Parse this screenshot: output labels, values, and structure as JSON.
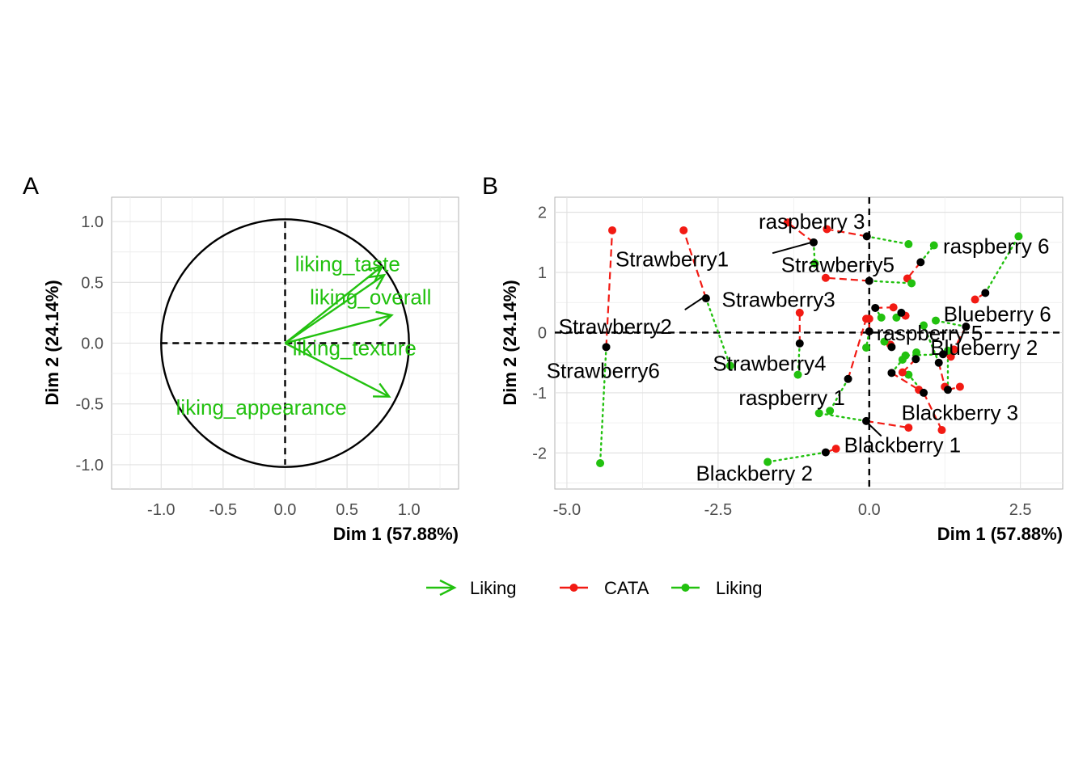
{
  "colors": {
    "cata": "#F21A13",
    "liking": "#22C10F",
    "product": "#000000",
    "grid": "#e0e0e0"
  },
  "legend": [
    {
      "kind": "arrow",
      "label": "Liking",
      "color": "#22C10F"
    },
    {
      "kind": "line-point",
      "label": "CATA",
      "color": "#F21A13"
    },
    {
      "kind": "line-point",
      "label": "Liking",
      "color": "#22C10F"
    }
  ],
  "chart_data": [
    {
      "panel": "A",
      "type": "correlation-circle",
      "xlabel": "Dim 1 (57.88%)",
      "ylabel": "Dim 2 (24.14%)",
      "xlim": [
        -1.4,
        1.4
      ],
      "ylim": [
        -1.2,
        1.2
      ],
      "xticks": [
        -1.0,
        -0.5,
        0.0,
        0.5,
        1.0
      ],
      "xtick_labels": [
        "-1.0",
        "-0.5",
        "0.0",
        "0.5",
        "1.0"
      ],
      "yticks": [
        -1.0,
        -0.5,
        0.0,
        0.5,
        1.0
      ],
      "ytick_labels": [
        "-1.0",
        "-0.5",
        "0.0",
        "0.5",
        "1.0"
      ],
      "vectors": [
        {
          "name": "liking_taste",
          "x": 0.78,
          "y": 0.63
        },
        {
          "name": "liking_overall",
          "x": 0.8,
          "y": 0.56
        },
        {
          "name": "liking_texture",
          "x": 0.86,
          "y": 0.23
        },
        {
          "name": "liking_appearance",
          "x": 0.84,
          "y": -0.44
        }
      ]
    },
    {
      "panel": "B",
      "type": "scatter",
      "xlabel": "Dim 1 (57.88%)",
      "ylabel": "Dim 2 (24.14%)",
      "xlim": [
        -5.2,
        3.2
      ],
      "ylim": [
        -2.6,
        2.25
      ],
      "xticks": [
        -5.0,
        -2.5,
        0.0,
        2.5
      ],
      "xtick_labels": [
        "-5.0",
        "-2.5",
        "0.0",
        "2.5"
      ],
      "yticks": [
        -2,
        -1,
        0,
        1,
        2
      ],
      "ytick_labels": [
        "-2",
        "-1",
        "0",
        "1",
        "2"
      ],
      "products": [
        {
          "x": -0.92,
          "y": 1.5,
          "cata": [
            -1.35,
            1.83
          ],
          "liking": [
            -0.9,
            1.15
          ]
        },
        {
          "x": -0.04,
          "y": 1.6,
          "cata": [
            -0.7,
            1.72
          ],
          "liking": [
            0.65,
            1.47
          ]
        },
        {
          "x": 0.85,
          "y": 1.17,
          "cata": [
            0.63,
            0.9
          ],
          "liking": [
            1.07,
            1.45
          ]
        },
        {
          "x": 0.0,
          "y": 0.86,
          "cata": [
            -0.72,
            0.91
          ],
          "liking": [
            0.7,
            0.82
          ]
        },
        {
          "x": -2.7,
          "y": 0.57,
          "cata": [
            -3.07,
            1.7
          ],
          "liking": [
            -2.3,
            -0.55
          ]
        },
        {
          "x": -4.35,
          "y": -0.24,
          "cata": [
            -4.25,
            1.7
          ],
          "liking": [
            -4.45,
            -2.17
          ]
        },
        {
          "x": -1.15,
          "y": -0.18,
          "cata": [
            -1.15,
            0.33
          ],
          "liking": [
            -1.18,
            -0.7
          ]
        },
        {
          "x": -0.35,
          "y": -0.77,
          "cata": [
            -0.05,
            0.23
          ],
          "liking": [
            -0.65,
            -1.3
          ]
        },
        {
          "x": -0.05,
          "y": -1.47,
          "cata": [
            0.65,
            -1.58
          ],
          "liking": [
            -0.83,
            -1.34
          ]
        },
        {
          "x": -0.72,
          "y": -1.99,
          "cata": [
            -0.55,
            -1.93
          ],
          "liking": [
            -1.68,
            -2.15
          ]
        },
        {
          "x": 0.9,
          "y": -1.0,
          "cata": [
            1.2,
            -1.62
          ],
          "liking": [
            0.65,
            -0.7
          ]
        },
        {
          "x": 1.22,
          "y": -0.36,
          "cata": [
            1.35,
            -0.4
          ],
          "liking": [
            0.6,
            -0.38
          ]
        },
        {
          "x": 1.6,
          "y": 0.1,
          "cata": [
            1.4,
            -0.28
          ],
          "liking": [
            1.1,
            0.2
          ]
        },
        {
          "x": 1.92,
          "y": 0.66,
          "cata": [
            1.75,
            0.55
          ],
          "liking": [
            2.47,
            1.6
          ]
        },
        {
          "x": 0.0,
          "y": 0.02,
          "cata": [
            0.0,
            0.23
          ],
          "liking": [
            -0.05,
            -0.25
          ]
        },
        {
          "x": 0.53,
          "y": 0.33,
          "cata": [
            0.6,
            0.28
          ],
          "liking": [
            0.45,
            0.25
          ]
        },
        {
          "x": 0.37,
          "y": -0.24,
          "cata": [
            0.35,
            -0.2
          ],
          "liking": [
            0.25,
            -0.15
          ]
        },
        {
          "x": 0.77,
          "y": -0.44,
          "cata": [
            0.55,
            -0.66
          ],
          "liking": [
            0.78,
            -0.33
          ]
        },
        {
          "x": 0.37,
          "y": -0.67,
          "cata": [
            0.82,
            -0.95
          ],
          "liking": [
            0.55,
            -0.45
          ]
        },
        {
          "x": 0.1,
          "y": 0.41,
          "cata": [
            0.4,
            0.42
          ],
          "liking": [
            0.2,
            0.25
          ]
        },
        {
          "x": 1.3,
          "y": -0.95,
          "cata": [
            1.5,
            -0.9
          ],
          "liking": [
            1.3,
            -0.3
          ]
        },
        {
          "x": 1.15,
          "y": -0.5,
          "cata": [
            1.25,
            -0.9
          ],
          "liking": [
            0.9,
            0.12
          ]
        }
      ],
      "labels": [
        {
          "text": "raspberry 3",
          "x": -0.95,
          "y": 1.85
        },
        {
          "text": "raspberry 6",
          "x": 2.1,
          "y": 1.44
        },
        {
          "text": "Strawberry1",
          "x": -3.26,
          "y": 1.22
        },
        {
          "text": "Strawberry5",
          "x": -0.52,
          "y": 1.13
        },
        {
          "text": "Strawberry3",
          "x": -1.5,
          "y": 0.55
        },
        {
          "text": "Strawberry2",
          "x": -4.2,
          "y": 0.1
        },
        {
          "text": "Blueberry 6",
          "x": 2.12,
          "y": 0.31
        },
        {
          "text": "raspberry 5",
          "x": 1.0,
          "y": -0.01
        },
        {
          "text": "Blueberry 2",
          "x": 1.9,
          "y": -0.25
        },
        {
          "text": "Strawberry6",
          "x": -4.4,
          "y": -0.63
        },
        {
          "text": "Strawberry4",
          "x": -1.65,
          "y": -0.51
        },
        {
          "text": "raspberry  1",
          "x": -1.28,
          "y": -1.08
        },
        {
          "text": "Blackberry 3",
          "x": 1.5,
          "y": -1.33
        },
        {
          "text": "Blackberry 1",
          "x": 0.55,
          "y": -1.87
        },
        {
          "text": "Blackberry 2",
          "x": -1.9,
          "y": -2.34
        }
      ],
      "leaders": [
        {
          "from": [
            -2.75,
            0.58
          ],
          "to": [
            -3.05,
            0.38
          ]
        },
        {
          "from": [
            -0.95,
            1.5
          ],
          "to": [
            -1.6,
            1.32
          ]
        },
        {
          "from": [
            0.2,
            -1.72
          ],
          "to": [
            -0.03,
            -1.5
          ]
        }
      ]
    }
  ]
}
